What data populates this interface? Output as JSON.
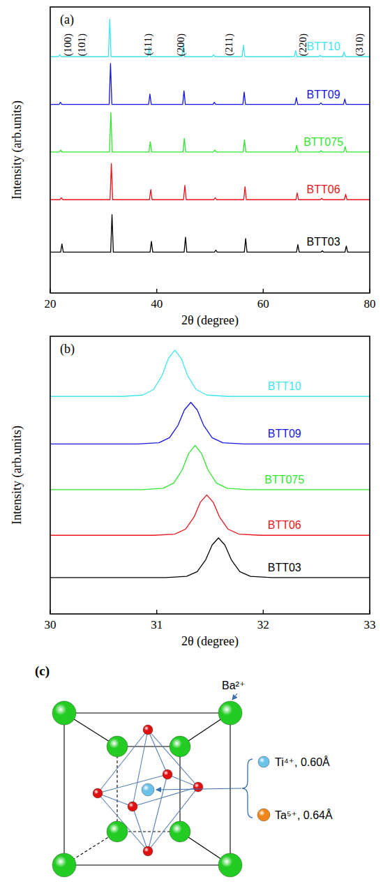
{
  "chart_data": [
    {
      "type": "line",
      "label": "(a)",
      "x_label": "2θ (degree)",
      "y_label": "Intensity (arb.units)",
      "xlim": [
        20,
        80
      ],
      "xticks": [
        20,
        40,
        60,
        80
      ],
      "ylim": [
        0,
        420
      ],
      "tick_labels": "x",
      "annotations": [
        {
          "text": "(100)",
          "x": 23.3
        },
        {
          "text": "(101)",
          "x": 25.9
        },
        {
          "text": "(111)",
          "x": 38.4
        },
        {
          "text": "(200)",
          "x": 44.5
        },
        {
          "text": "(211)",
          "x": 53.6
        },
        {
          "text": "(220)",
          "x": 67.4
        },
        {
          "text": "(310)",
          "x": 78.1
        }
      ],
      "series": [
        {
          "name": "BTT03",
          "color": "#000000",
          "x": [
            20,
            21.95,
            22.2,
            22.45,
            31.35,
            31.6,
            31.85,
            38.75,
            39.0,
            39.25,
            45.15,
            45.4,
            45.65,
            50.85,
            51.1,
            51.35,
            56.45,
            56.7,
            56.95,
            66.25,
            66.5,
            66.75,
            70.85,
            71.1,
            71.35,
            75.35,
            75.6,
            75.85,
            80
          ],
          "values": [
            60,
            60,
            72,
            60,
            60,
            115,
            60,
            60,
            76,
            60,
            60,
            82,
            60,
            60,
            63,
            60,
            60,
            80,
            60,
            60,
            71,
            60,
            60,
            62,
            60,
            60,
            69,
            60,
            60
          ]
        },
        {
          "name": "BTT06",
          "color": "#e8141a",
          "x": [
            20,
            21.83,
            22.08,
            22.33,
            31.23,
            31.48,
            31.73,
            38.63,
            38.88,
            39.13,
            45.03,
            45.28,
            45.53,
            50.73,
            50.98,
            51.23,
            56.33,
            56.58,
            56.83,
            66.13,
            66.38,
            66.63,
            70.73,
            70.98,
            71.23,
            75.23,
            75.48,
            75.73,
            80
          ],
          "values": [
            137,
            137,
            140,
            137,
            137,
            190,
            137,
            137,
            152,
            137,
            137,
            158,
            137,
            137,
            140,
            137,
            137,
            156,
            137,
            137,
            147,
            137,
            137,
            139,
            137,
            137,
            145,
            137,
            137
          ]
        },
        {
          "name": "BTT075",
          "color": "#2ee82e",
          "x": [
            20,
            21.73,
            21.98,
            22.23,
            31.13,
            31.38,
            31.63,
            38.53,
            38.78,
            39.03,
            44.93,
            45.18,
            45.43,
            50.63,
            50.88,
            51.13,
            56.23,
            56.48,
            56.73,
            66.03,
            66.28,
            66.53,
            70.63,
            70.88,
            71.13,
            75.13,
            75.38,
            75.63,
            80
          ],
          "values": [
            207,
            207,
            210,
            207,
            207,
            265,
            207,
            207,
            222,
            207,
            207,
            227,
            207,
            207,
            210,
            207,
            207,
            225,
            207,
            207,
            217,
            207,
            207,
            209,
            207,
            207,
            215,
            207,
            207
          ]
        },
        {
          "name": "BTT09",
          "color": "#1414e6",
          "x": [
            20,
            21.67,
            21.92,
            22.17,
            31.07,
            31.32,
            31.57,
            38.47,
            38.72,
            38.97,
            44.87,
            45.12,
            45.37,
            50.57,
            50.82,
            51.07,
            56.17,
            56.42,
            56.67,
            65.97,
            66.22,
            66.47,
            70.57,
            70.82,
            71.07,
            75.07,
            75.32,
            75.57,
            80
          ],
          "values": [
            277,
            277,
            280,
            277,
            277,
            337,
            277,
            277,
            292,
            277,
            277,
            297,
            277,
            277,
            280,
            277,
            277,
            295,
            277,
            277,
            287,
            277,
            277,
            279,
            277,
            277,
            285,
            277,
            277
          ]
        },
        {
          "name": "BTT10",
          "color": "#3ee4f2",
          "x": [
            20,
            21.53,
            21.78,
            22.03,
            30.93,
            31.18,
            31.43,
            38.33,
            38.58,
            38.83,
            44.73,
            44.98,
            45.23,
            50.43,
            50.68,
            50.93,
            56.03,
            56.28,
            56.53,
            65.83,
            66.08,
            66.33,
            70.43,
            70.68,
            70.93,
            74.93,
            75.18,
            75.43,
            80
          ],
          "values": [
            347,
            347,
            350,
            347,
            347,
            402,
            347,
            347,
            361,
            347,
            347,
            365,
            347,
            347,
            350,
            347,
            347,
            364,
            347,
            347,
            356,
            347,
            347,
            349,
            347,
            347,
            354,
            347,
            347
          ]
        }
      ]
    },
    {
      "type": "line",
      "label": "(b)",
      "x_label": "2θ (degree)",
      "y_label": "Intensity (arb.units)",
      "xlim": [
        30,
        33
      ],
      "xticks": [
        30,
        31,
        32,
        33
      ],
      "ylim": [
        0,
        420
      ],
      "tick_labels": "x",
      "series": [
        {
          "name": "BTT03",
          "color": "#000000",
          "x": [
            30,
            31.08,
            31.28,
            31.38,
            31.46,
            31.52,
            31.58,
            31.64,
            31.7,
            31.78,
            31.88,
            32.08,
            33
          ],
          "values": [
            55,
            55,
            56.8,
            64,
            82,
            104.2,
            115,
            104.2,
            82,
            64,
            56.8,
            55,
            55
          ]
        },
        {
          "name": "BTT06",
          "color": "#e8141a",
          "x": [
            30,
            30.97,
            31.17,
            31.27,
            31.35,
            31.41,
            31.47,
            31.53,
            31.59,
            31.67,
            31.77,
            31.97,
            33
          ],
          "values": [
            119,
            119,
            120.8,
            128.2,
            146.5,
            169,
            180,
            169,
            146.5,
            128.2,
            120.8,
            119,
            119
          ]
        },
        {
          "name": "BTT075",
          "color": "#2ee82e",
          "x": [
            30,
            30.86,
            31.06,
            31.16,
            31.24,
            31.3,
            31.36,
            31.42,
            31.48,
            31.56,
            31.66,
            31.86,
            33
          ],
          "values": [
            188,
            188,
            190,
            198,
            218.2,
            242.9,
            255,
            242.9,
            218.2,
            198,
            190,
            188,
            188
          ]
        },
        {
          "name": "BTT09",
          "color": "#1414e6",
          "x": [
            30,
            30.82,
            31.02,
            31.12,
            31.2,
            31.26,
            31.32,
            31.38,
            31.44,
            31.52,
            31.62,
            31.82,
            33
          ],
          "values": [
            257,
            257,
            258.9,
            266.5,
            285.4,
            308.7,
            320,
            308.7,
            285.4,
            266.5,
            258.9,
            257,
            257
          ]
        },
        {
          "name": "BTT10",
          "color": "#3ee4f2",
          "x": [
            30,
            30.67,
            30.87,
            30.97,
            31.05,
            31.11,
            31.17,
            31.23,
            31.29,
            31.37,
            31.47,
            31.67,
            33
          ],
          "values": [
            329,
            329,
            331.1,
            339.5,
            360.5,
            386.4,
            399,
            386.4,
            360.5,
            339.5,
            331.1,
            329,
            329
          ]
        }
      ]
    }
  ],
  "diagram": {
    "label": "(c)",
    "atoms": [
      {
        "label": "Ba²⁺",
        "color": "#22cc22"
      },
      {
        "label": "Ti⁴⁺, 0.60Å",
        "color": "#6cc3ea"
      },
      {
        "label": "Ta⁵⁺, 0.64Å",
        "color": "#f0861a"
      }
    ]
  }
}
